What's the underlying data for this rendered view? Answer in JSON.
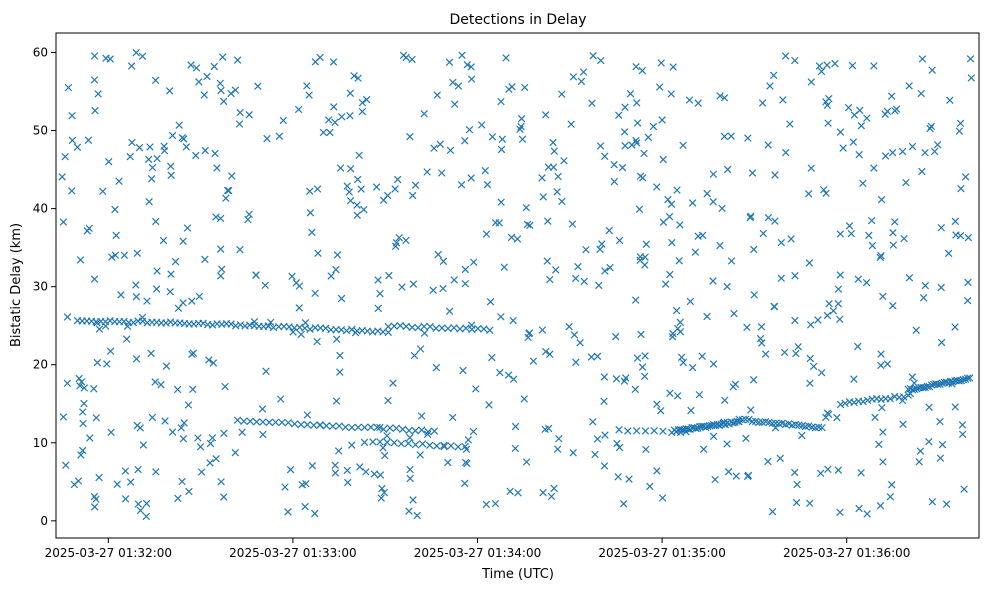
{
  "chart_data": {
    "type": "scatter",
    "title": "Detections in Delay",
    "xlabel": "Time (UTC)",
    "ylabel": "Bistatic Delay (km)",
    "x_unit": "time",
    "x_start": "2025-03-27 01:31:43",
    "x_range": [
      "2025-03-27 01:31:43",
      "2025-03-27 01:36:43"
    ],
    "ylim": [
      -2.2,
      62.5
    ],
    "xticks": [
      {
        "t": "2025-03-27 01:32:00",
        "label": "2025-03-27 01:32:00"
      },
      {
        "t": "2025-03-27 01:33:00",
        "label": "2025-03-27 01:33:00"
      },
      {
        "t": "2025-03-27 01:34:00",
        "label": "2025-03-27 01:34:00"
      },
      {
        "t": "2025-03-27 01:35:00",
        "label": "2025-03-27 01:35:00"
      },
      {
        "t": "2025-03-27 01:36:00",
        "label": "2025-03-27 01:36:00"
      }
    ],
    "yticks": [
      0,
      10,
      20,
      30,
      40,
      50,
      60
    ],
    "marker": "x",
    "color": "#1f77b4",
    "grid": false,
    "legend": "none",
    "series": [
      {
        "tracks": [
          {
            "t0": "2025-03-27 01:31:50",
            "t1": "2025-03-27 01:32:52",
            "y0": 25.7,
            "y1": 25.0,
            "n": 42
          },
          {
            "t0": "2025-03-27 01:32:52",
            "t1": "2025-03-27 01:33:31",
            "y0": 24.9,
            "y1": 24.2,
            "n": 24
          },
          {
            "t0": "2025-03-27 01:33:31",
            "t1": "2025-03-27 01:34:04",
            "y0": 25.0,
            "y1": 24.5,
            "n": 18
          },
          {
            "t0": "2025-03-27 01:32:42",
            "t1": "2025-03-27 01:33:46",
            "y0": 12.8,
            "y1": 11.5,
            "n": 32
          },
          {
            "t0": "2025-03-27 01:33:26",
            "t1": "2025-03-27 01:33:56",
            "y0": 10.2,
            "y1": 9.4,
            "n": 14
          },
          {
            "t0": "2025-03-27 01:34:46",
            "t1": "2025-03-27 01:35:06",
            "y0": 11.6,
            "y1": 11.4,
            "n": 8
          },
          {
            "t0": "2025-03-27 01:35:04",
            "t1": "2025-03-27 01:35:25",
            "y0": 11.5,
            "y1": 12.7,
            "n": 34
          },
          {
            "t0": "2025-03-27 01:35:25",
            "t1": "2025-03-27 01:35:52",
            "y0": 13.0,
            "y1": 11.9,
            "n": 26
          },
          {
            "t0": "2025-03-27 01:35:58",
            "t1": "2025-03-27 01:36:20",
            "y0": 15.0,
            "y1": 16.0,
            "n": 16
          },
          {
            "t0": "2025-03-27 01:36:20",
            "t1": "2025-03-27 01:36:40",
            "y0": 16.8,
            "y1": 18.2,
            "n": 30
          }
        ],
        "clutter": {
          "t_range": [
            "2025-03-27 01:31:45",
            "2025-03-27 01:36:42"
          ],
          "y_range": [
            0.5,
            60.0
          ],
          "n": 760
        }
      }
    ]
  }
}
